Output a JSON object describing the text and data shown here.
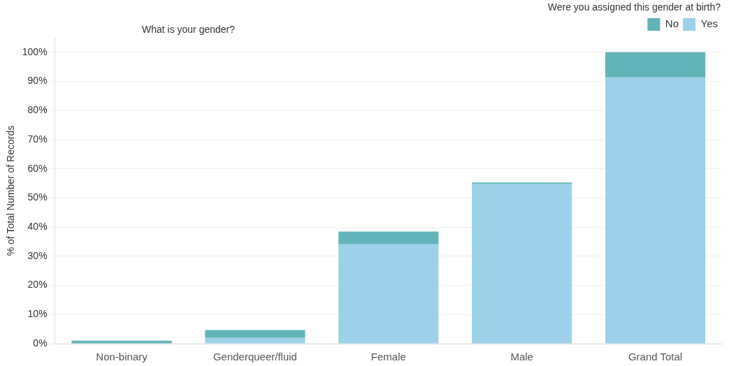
{
  "chart_data": {
    "type": "bar",
    "stacked": true,
    "xlabel": "What is your gender?",
    "ylabel": "% of Total Number of Records",
    "legend_title": "Were you assigned this gender at birth?",
    "legend": "top right",
    "grid": "y",
    "categories": [
      "Non-binary",
      "Genderqueer/fluid",
      "Female",
      "Male",
      "Grand Total"
    ],
    "series": [
      {
        "name": "Yes",
        "color": "#9dd1e9",
        "values": [
          0,
          2,
          34.1,
          54.8,
          91.4
        ]
      },
      {
        "name": "No",
        "color": "#61b4b9",
        "values": [
          1,
          2.7,
          4.4,
          0.5,
          8.6
        ]
      }
    ],
    "ylim": [
      0,
      105
    ],
    "yticks": [
      {
        "value": 0,
        "label": "0%"
      },
      {
        "value": 10,
        "label": "10%"
      },
      {
        "value": 20,
        "label": "20%"
      },
      {
        "value": 30,
        "label": "30%"
      },
      {
        "value": 40,
        "label": "40%"
      },
      {
        "value": 50,
        "label": "50%"
      },
      {
        "value": 60,
        "label": "60%"
      },
      {
        "value": 70,
        "label": "70%"
      },
      {
        "value": 80,
        "label": "80%"
      },
      {
        "value": 90,
        "label": "90%"
      },
      {
        "value": 100,
        "label": "100%"
      }
    ]
  }
}
